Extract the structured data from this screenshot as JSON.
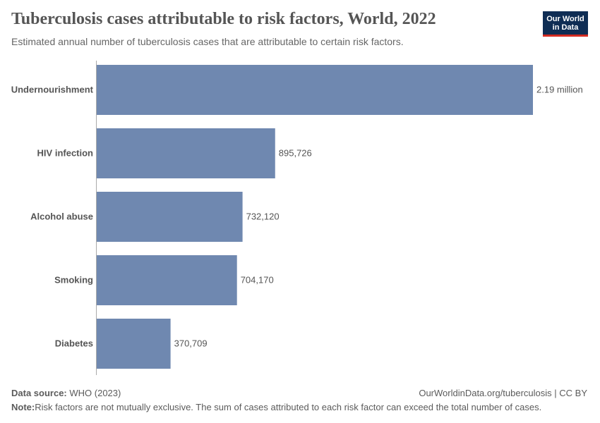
{
  "header": {
    "title": "Tuberculosis cases attributable to risk factors, World, 2022",
    "subtitle": "Estimated annual number of tuberculosis cases that are attributable to certain risk factors."
  },
  "logo": {
    "line1": "Our World",
    "line2": "in Data"
  },
  "footer": {
    "source_label": "Data source:",
    "source_value": "WHO (2023)",
    "url": "OurWorldinData.org/tuberculosis | CC BY",
    "note_label": "Note:",
    "note_value": "Risk factors are not mutually exclusive. The sum of cases attributed to each risk factor can exceed the total number of cases."
  },
  "colors": {
    "bar": "#6f88b0",
    "axis": "#aaaaaa",
    "logo_bg": "#0f2d54",
    "logo_accent": "#d42b21"
  },
  "chart_data": {
    "type": "bar",
    "orientation": "horizontal",
    "categories": [
      "Undernourishment",
      "HIV infection",
      "Alcohol abuse",
      "Smoking",
      "Diabetes"
    ],
    "values": [
      2190000,
      895726,
      732120,
      704170,
      370709
    ],
    "value_labels": [
      "2.19 million",
      "895,726",
      "732,120",
      "704,170",
      "370,709"
    ],
    "title": "Tuberculosis cases attributable to risk factors, World, 2022",
    "xlabel": "",
    "ylabel": ""
  }
}
